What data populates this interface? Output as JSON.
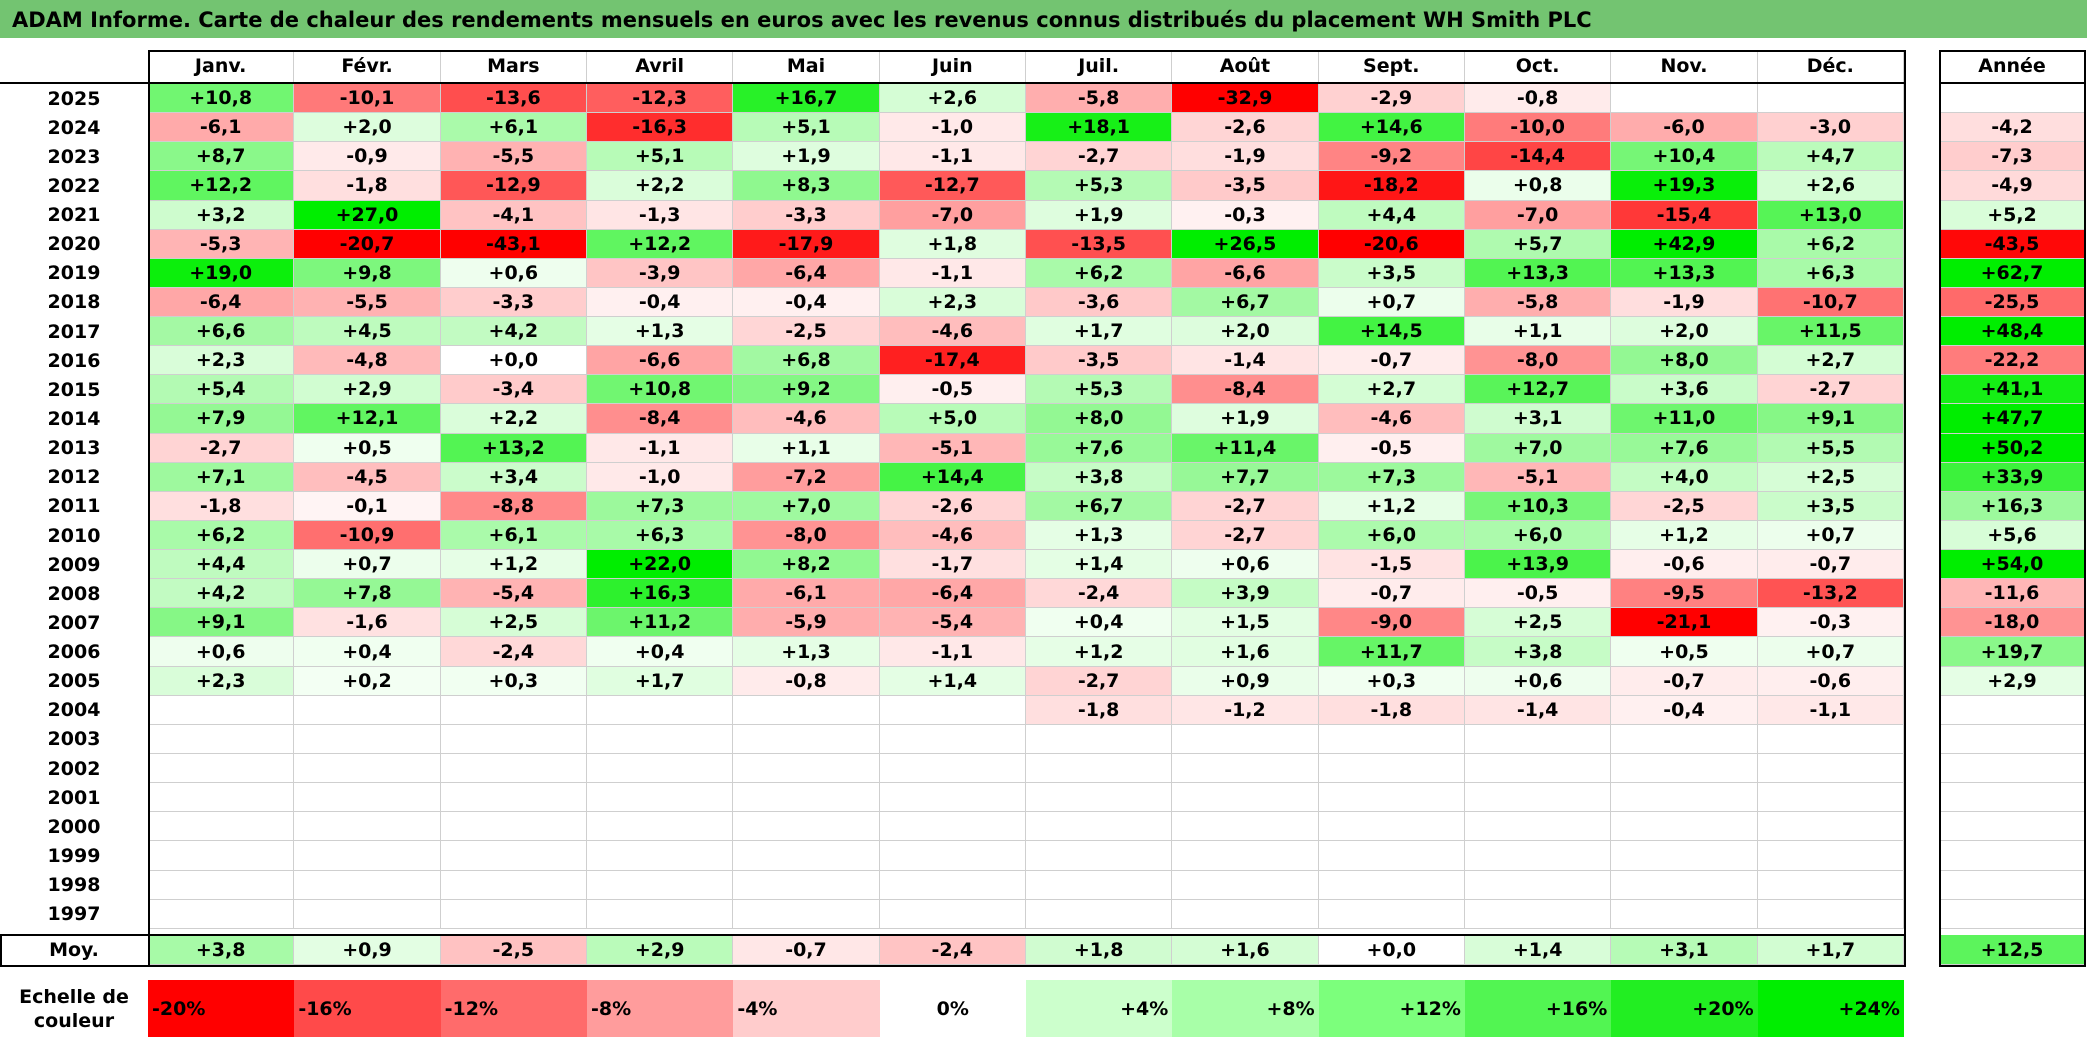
{
  "title": "ADAM Informe. Carte de chaleur des rendements mensuels en euros avec les revenus connus distribués du placement WH Smith PLC",
  "chart_data": {
    "type": "heatmap",
    "columns": [
      "Janv.",
      "Févr.",
      "Mars",
      "Avril",
      "Mai",
      "Juin",
      "Juil.",
      "Août",
      "Sept.",
      "Oct.",
      "Nov.",
      "Déc."
    ],
    "year_column": "Année",
    "rows": [
      {
        "year": "2025",
        "values": [
          "+10,8",
          "-10,1",
          "-13,6",
          "-12,3",
          "+16,7",
          "+2,6",
          "-5,8",
          "-32,9",
          "-2,9",
          "-0,8",
          "",
          ""
        ],
        "annual": ""
      },
      {
        "year": "2024",
        "values": [
          "-6,1",
          "+2,0",
          "+6,1",
          "-16,3",
          "+5,1",
          "-1,0",
          "+18,1",
          "-2,6",
          "+14,6",
          "-10,0",
          "-6,0",
          "-3,0"
        ],
        "annual": "-4,2"
      },
      {
        "year": "2023",
        "values": [
          "+8,7",
          "-0,9",
          "-5,5",
          "+5,1",
          "+1,9",
          "-1,1",
          "-2,7",
          "-1,9",
          "-9,2",
          "-14,4",
          "+10,4",
          "+4,7"
        ],
        "annual": "-7,3"
      },
      {
        "year": "2022",
        "values": [
          "+12,2",
          "-1,8",
          "-12,9",
          "+2,2",
          "+8,3",
          "-12,7",
          "+5,3",
          "-3,5",
          "-18,2",
          "+0,8",
          "+19,3",
          "+2,6"
        ],
        "annual": "-4,9"
      },
      {
        "year": "2021",
        "values": [
          "+3,2",
          "+27,0",
          "-4,1",
          "-1,3",
          "-3,3",
          "-7,0",
          "+1,9",
          "-0,3",
          "+4,4",
          "-7,0",
          "-15,4",
          "+13,0"
        ],
        "annual": "+5,2"
      },
      {
        "year": "2020",
        "values": [
          "-5,3",
          "-20,7",
          "-43,1",
          "+12,2",
          "-17,9",
          "+1,8",
          "-13,5",
          "+26,5",
          "-20,6",
          "+5,7",
          "+42,9",
          "+6,2"
        ],
        "annual": "-43,5"
      },
      {
        "year": "2019",
        "values": [
          "+19,0",
          "+9,8",
          "+0,6",
          "-3,9",
          "-6,4",
          "-1,1",
          "+6,2",
          "-6,6",
          "+3,5",
          "+13,3",
          "+13,3",
          "+6,3"
        ],
        "annual": "+62,7"
      },
      {
        "year": "2018",
        "values": [
          "-6,4",
          "-5,5",
          "-3,3",
          "-0,4",
          "-0,4",
          "+2,3",
          "-3,6",
          "+6,7",
          "+0,7",
          "-5,8",
          "-1,9",
          "-10,7"
        ],
        "annual": "-25,5"
      },
      {
        "year": "2017",
        "values": [
          "+6,6",
          "+4,5",
          "+4,2",
          "+1,3",
          "-2,5",
          "-4,6",
          "+1,7",
          "+2,0",
          "+14,5",
          "+1,1",
          "+2,0",
          "+11,5"
        ],
        "annual": "+48,4"
      },
      {
        "year": "2016",
        "values": [
          "+2,3",
          "-4,8",
          "+0,0",
          "-6,6",
          "+6,8",
          "-17,4",
          "-3,5",
          "-1,4",
          "-0,7",
          "-8,0",
          "+8,0",
          "+2,7"
        ],
        "annual": "-22,2"
      },
      {
        "year": "2015",
        "values": [
          "+5,4",
          "+2,9",
          "-3,4",
          "+10,8",
          "+9,2",
          "-0,5",
          "+5,3",
          "-8,4",
          "+2,7",
          "+12,7",
          "+3,6",
          "-2,7"
        ],
        "annual": "+41,1"
      },
      {
        "year": "2014",
        "values": [
          "+7,9",
          "+12,1",
          "+2,2",
          "-8,4",
          "-4,6",
          "+5,0",
          "+8,0",
          "+1,9",
          "-4,6",
          "+3,1",
          "+11,0",
          "+9,1"
        ],
        "annual": "+47,7"
      },
      {
        "year": "2013",
        "values": [
          "-2,7",
          "+0,5",
          "+13,2",
          "-1,1",
          "+1,1",
          "-5,1",
          "+7,6",
          "+11,4",
          "-0,5",
          "+7,0",
          "+7,6",
          "+5,5"
        ],
        "annual": "+50,2"
      },
      {
        "year": "2012",
        "values": [
          "+7,1",
          "-4,5",
          "+3,4",
          "-1,0",
          "-7,2",
          "+14,4",
          "+3,8",
          "+7,7",
          "+7,3",
          "-5,1",
          "+4,0",
          "+2,5"
        ],
        "annual": "+33,9"
      },
      {
        "year": "2011",
        "values": [
          "-1,8",
          "-0,1",
          "-8,8",
          "+7,3",
          "+7,0",
          "-2,6",
          "+6,7",
          "-2,7",
          "+1,2",
          "+10,3",
          "-2,5",
          "+3,5"
        ],
        "annual": "+16,3"
      },
      {
        "year": "2010",
        "values": [
          "+6,2",
          "-10,9",
          "+6,1",
          "+6,3",
          "-8,0",
          "-4,6",
          "+1,3",
          "-2,7",
          "+6,0",
          "+6,0",
          "+1,2",
          "+0,7"
        ],
        "annual": "+5,6"
      },
      {
        "year": "2009",
        "values": [
          "+4,4",
          "+0,7",
          "+1,2",
          "+22,0",
          "+8,2",
          "-1,7",
          "+1,4",
          "+0,6",
          "-1,5",
          "+13,9",
          "-0,6",
          "-0,7"
        ],
        "annual": "+54,0"
      },
      {
        "year": "2008",
        "values": [
          "+4,2",
          "+7,8",
          "-5,4",
          "+16,3",
          "-6,1",
          "-6,4",
          "-2,4",
          "+3,9",
          "-0,7",
          "-0,5",
          "-9,5",
          "-13,2"
        ],
        "annual": "-11,6"
      },
      {
        "year": "2007",
        "values": [
          "+9,1",
          "-1,6",
          "+2,5",
          "+11,2",
          "-5,9",
          "-5,4",
          "+0,4",
          "+1,5",
          "-9,0",
          "+2,5",
          "-21,1",
          "-0,3"
        ],
        "annual": "-18,0"
      },
      {
        "year": "2006",
        "values": [
          "+0,6",
          "+0,4",
          "-2,4",
          "+0,4",
          "+1,3",
          "-1,1",
          "+1,2",
          "+1,6",
          "+11,7",
          "+3,8",
          "+0,5",
          "+0,7"
        ],
        "annual": "+19,7"
      },
      {
        "year": "2005",
        "values": [
          "+2,3",
          "+0,2",
          "+0,3",
          "+1,7",
          "-0,8",
          "+1,4",
          "-2,7",
          "+0,9",
          "+0,3",
          "+0,6",
          "-0,7",
          "-0,6"
        ],
        "annual": "+2,9"
      },
      {
        "year": "2004",
        "values": [
          "",
          "",
          "",
          "",
          "",
          "",
          "-1,8",
          "-1,2",
          "-1,8",
          "-1,4",
          "-0,4",
          "-1,1"
        ],
        "annual": ""
      },
      {
        "year": "2003",
        "values": [
          "",
          "",
          "",
          "",
          "",
          "",
          "",
          "",
          "",
          "",
          "",
          ""
        ],
        "annual": ""
      },
      {
        "year": "2002",
        "values": [
          "",
          "",
          "",
          "",
          "",
          "",
          "",
          "",
          "",
          "",
          "",
          ""
        ],
        "annual": ""
      },
      {
        "year": "2001",
        "values": [
          "",
          "",
          "",
          "",
          "",
          "",
          "",
          "",
          "",
          "",
          "",
          ""
        ],
        "annual": ""
      },
      {
        "year": "2000",
        "values": [
          "",
          "",
          "",
          "",
          "",
          "",
          "",
          "",
          "",
          "",
          "",
          ""
        ],
        "annual": ""
      },
      {
        "year": "1999",
        "values": [
          "",
          "",
          "",
          "",
          "",
          "",
          "",
          "",
          "",
          "",
          "",
          ""
        ],
        "annual": ""
      },
      {
        "year": "1998",
        "values": [
          "",
          "",
          "",
          "",
          "",
          "",
          "",
          "",
          "",
          "",
          "",
          ""
        ],
        "annual": ""
      },
      {
        "year": "1997",
        "values": [
          "",
          "",
          "",
          "",
          "",
          "",
          "",
          "",
          "",
          "",
          "",
          ""
        ],
        "annual": ""
      }
    ],
    "average": {
      "label": "Moy.",
      "values": [
        "+3,8",
        "+0,9",
        "-2,5",
        "+2,9",
        "-0,7",
        "-2,4",
        "+1,8",
        "+1,6",
        "+0,0",
        "+1,4",
        "+3,1",
        "+1,7"
      ],
      "annual": "+12,5"
    },
    "color_scale": {
      "label": "Echelle de couleur",
      "steps": [
        "-20%",
        "-16%",
        "-12%",
        "-8%",
        "-4%",
        "0%",
        "+4%",
        "+8%",
        "+12%",
        "+16%",
        "+20%",
        "+24%"
      ]
    },
    "colors": {
      "negative_max": "#ff0000",
      "positive_max": "#00ee00",
      "neutral": "#ffffff",
      "title_bg": "#73c471"
    }
  }
}
